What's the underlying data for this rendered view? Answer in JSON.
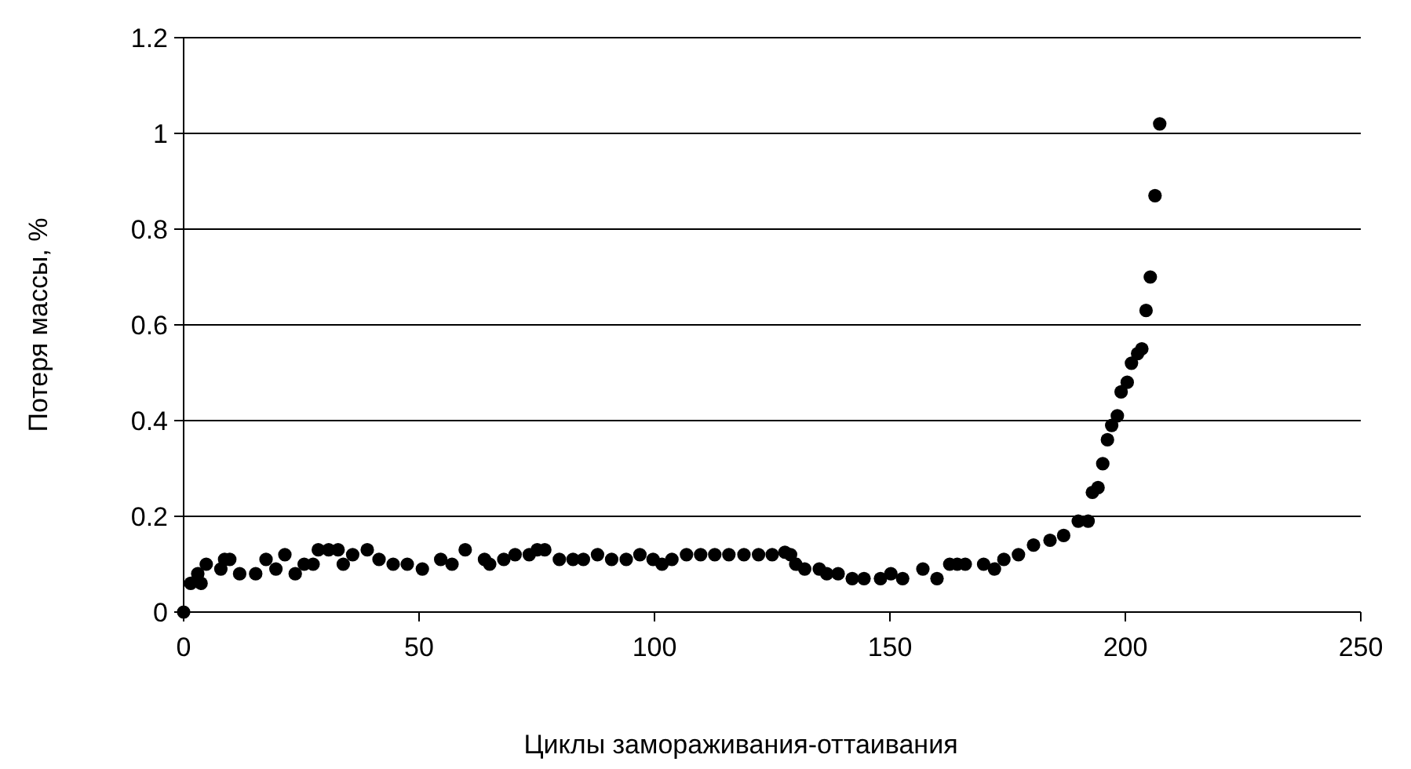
{
  "chart_data": {
    "type": "scatter",
    "xlabel": "Циклы замораживания-оттаивания",
    "ylabel": "Потеря массы, %",
    "xlim": [
      0,
      250
    ],
    "ylim": [
      0,
      1.2
    ],
    "xticks": [
      0,
      50,
      100,
      150,
      200,
      250
    ],
    "yticks": [
      0,
      0.2,
      0.4,
      0.6,
      0.8,
      1,
      1.2
    ],
    "grid": "y",
    "marker": "circle",
    "series": [
      {
        "color": "#000000",
        "x": [
          0,
          1.5,
          3,
          3.7,
          4.8,
          7.9,
          8.7,
          9.8,
          11.9,
          15.3,
          17.5,
          19.6,
          21.5,
          23.7,
          25.6,
          27.5,
          28.6,
          30.8,
          32.8,
          33.9,
          35.9,
          39,
          41.5,
          44.5,
          47.5,
          50.7,
          54.6,
          57,
          59.8,
          63.9,
          65,
          68,
          70.4,
          73.4,
          75.1,
          76.7,
          79.8,
          82.7,
          84.9,
          87.9,
          90.9,
          94,
          96.9,
          99.7,
          101.6,
          103.7,
          106.8,
          109.8,
          112.8,
          115.8,
          119,
          122.1,
          125,
          127.7,
          128.9,
          130,
          131.9,
          135,
          136.6,
          139,
          142,
          144.5,
          148,
          150.2,
          152.7,
          157,
          160,
          162.7,
          164.3,
          166,
          169.9,
          172.2,
          174.2,
          177.3,
          180.5,
          184,
          186.9,
          190,
          192.1,
          193,
          194.2,
          195.2,
          196.2,
          197.1,
          198.3,
          199.1,
          200.4,
          201.3,
          202.6,
          203.5,
          204.4,
          205.3,
          206.3,
          207.3
        ],
        "values": [
          0,
          0.06,
          0.08,
          0.06,
          0.1,
          0.09,
          0.11,
          0.11,
          0.08,
          0.08,
          0.11,
          0.09,
          0.12,
          0.08,
          0.1,
          0.1,
          0.13,
          0.13,
          0.13,
          0.1,
          0.12,
          0.13,
          0.11,
          0.1,
          0.1,
          0.09,
          0.11,
          0.1,
          0.13,
          0.11,
          0.1,
          0.11,
          0.12,
          0.12,
          0.13,
          0.13,
          0.11,
          0.11,
          0.11,
          0.12,
          0.11,
          0.11,
          0.12,
          0.11,
          0.1,
          0.11,
          0.12,
          0.12,
          0.12,
          0.12,
          0.12,
          0.12,
          0.12,
          0.125,
          0.12,
          0.1,
          0.09,
          0.09,
          0.08,
          0.08,
          0.07,
          0.07,
          0.07,
          0.08,
          0.07,
          0.09,
          0.07,
          0.1,
          0.1,
          0.1,
          0.1,
          0.09,
          0.11,
          0.12,
          0.14,
          0.15,
          0.16,
          0.19,
          0.19,
          0.25,
          0.26,
          0.31,
          0.36,
          0.39,
          0.41,
          0.46,
          0.48,
          0.52,
          0.54,
          0.55,
          0.63,
          0.7,
          0.87,
          1.02
        ]
      }
    ]
  }
}
